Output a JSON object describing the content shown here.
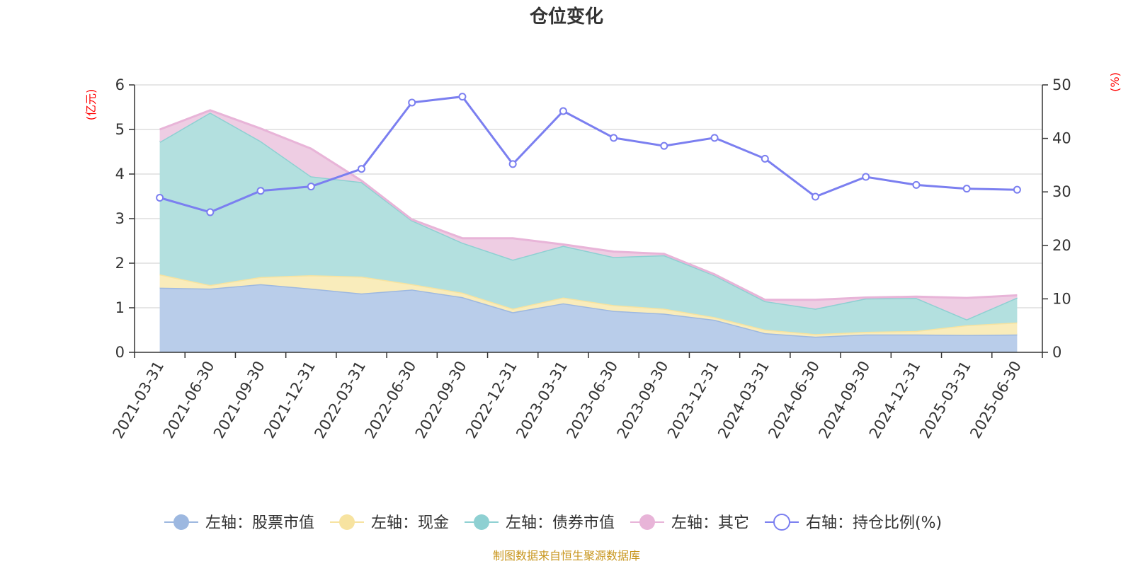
{
  "chart_data": {
    "type": "area",
    "title": "仓位变化",
    "y_left_unit": "(亿元)",
    "y_right_unit": "(%)",
    "ylim_left": [
      0,
      6
    ],
    "yticks_left": [
      0,
      1,
      2,
      3,
      4,
      5,
      6
    ],
    "ylim_right": [
      0,
      50
    ],
    "yticks_right": [
      0,
      10,
      20,
      30,
      40,
      50
    ],
    "grid": true,
    "legend_position": "bottom",
    "x": [
      "2021-03-31",
      "2021-06-30",
      "2021-09-30",
      "2021-12-31",
      "2022-03-31",
      "2022-06-30",
      "2022-09-30",
      "2022-12-31",
      "2023-03-31",
      "2023-06-30",
      "2023-09-30",
      "2023-12-31",
      "2024-03-31",
      "2024-06-30",
      "2024-09-30",
      "2024-12-31",
      "2025-03-31",
      "2025-06-30"
    ],
    "stacked_series": [
      {
        "name": "左轴：股票市值",
        "axis": "left",
        "color": "#9db8e0",
        "fill": "#b9cdea",
        "values": [
          1.45,
          1.43,
          1.53,
          1.43,
          1.32,
          1.41,
          1.24,
          0.9,
          1.1,
          0.93,
          0.87,
          0.73,
          0.43,
          0.35,
          0.4,
          0.4,
          0.39,
          0.4
        ]
      },
      {
        "name": "左轴：现金",
        "axis": "left",
        "color": "#f7e3a0",
        "fill": "#f9ecbb",
        "values": [
          0.3,
          0.08,
          0.16,
          0.3,
          0.38,
          0.12,
          0.1,
          0.08,
          0.13,
          0.13,
          0.11,
          0.06,
          0.08,
          0.06,
          0.06,
          0.08,
          0.22,
          0.27
        ]
      },
      {
        "name": "左轴：债券市值",
        "axis": "left",
        "color": "#8ed0d2",
        "fill": "#b3e0df",
        "values": [
          2.97,
          3.87,
          3.05,
          2.22,
          2.12,
          1.43,
          1.12,
          1.1,
          1.16,
          1.08,
          1.2,
          0.94,
          0.64,
          0.57,
          0.75,
          0.74,
          0.13,
          0.56
        ]
      },
      {
        "name": "左轴：其它",
        "axis": "left",
        "color": "#e8b4d8",
        "fill": "#eecde3",
        "values": [
          0.28,
          0.05,
          0.28,
          0.62,
          0.03,
          0.02,
          0.1,
          0.48,
          0.03,
          0.12,
          0.03,
          0.02,
          0.03,
          0.2,
          0.02,
          0.03,
          0.48,
          0.05
        ]
      }
    ],
    "line_series": {
      "name": "右轴：持仓比例(%)",
      "axis": "right",
      "color": "#7b7ff0",
      "values": [
        28.9,
        26.2,
        30.2,
        31.0,
        34.3,
        46.7,
        47.8,
        35.2,
        45.1,
        40.1,
        38.6,
        40.1,
        36.2,
        29.1,
        32.8,
        31.3,
        30.6,
        30.4
      ]
    }
  },
  "source_note": "制图数据来自恒生聚源数据库"
}
